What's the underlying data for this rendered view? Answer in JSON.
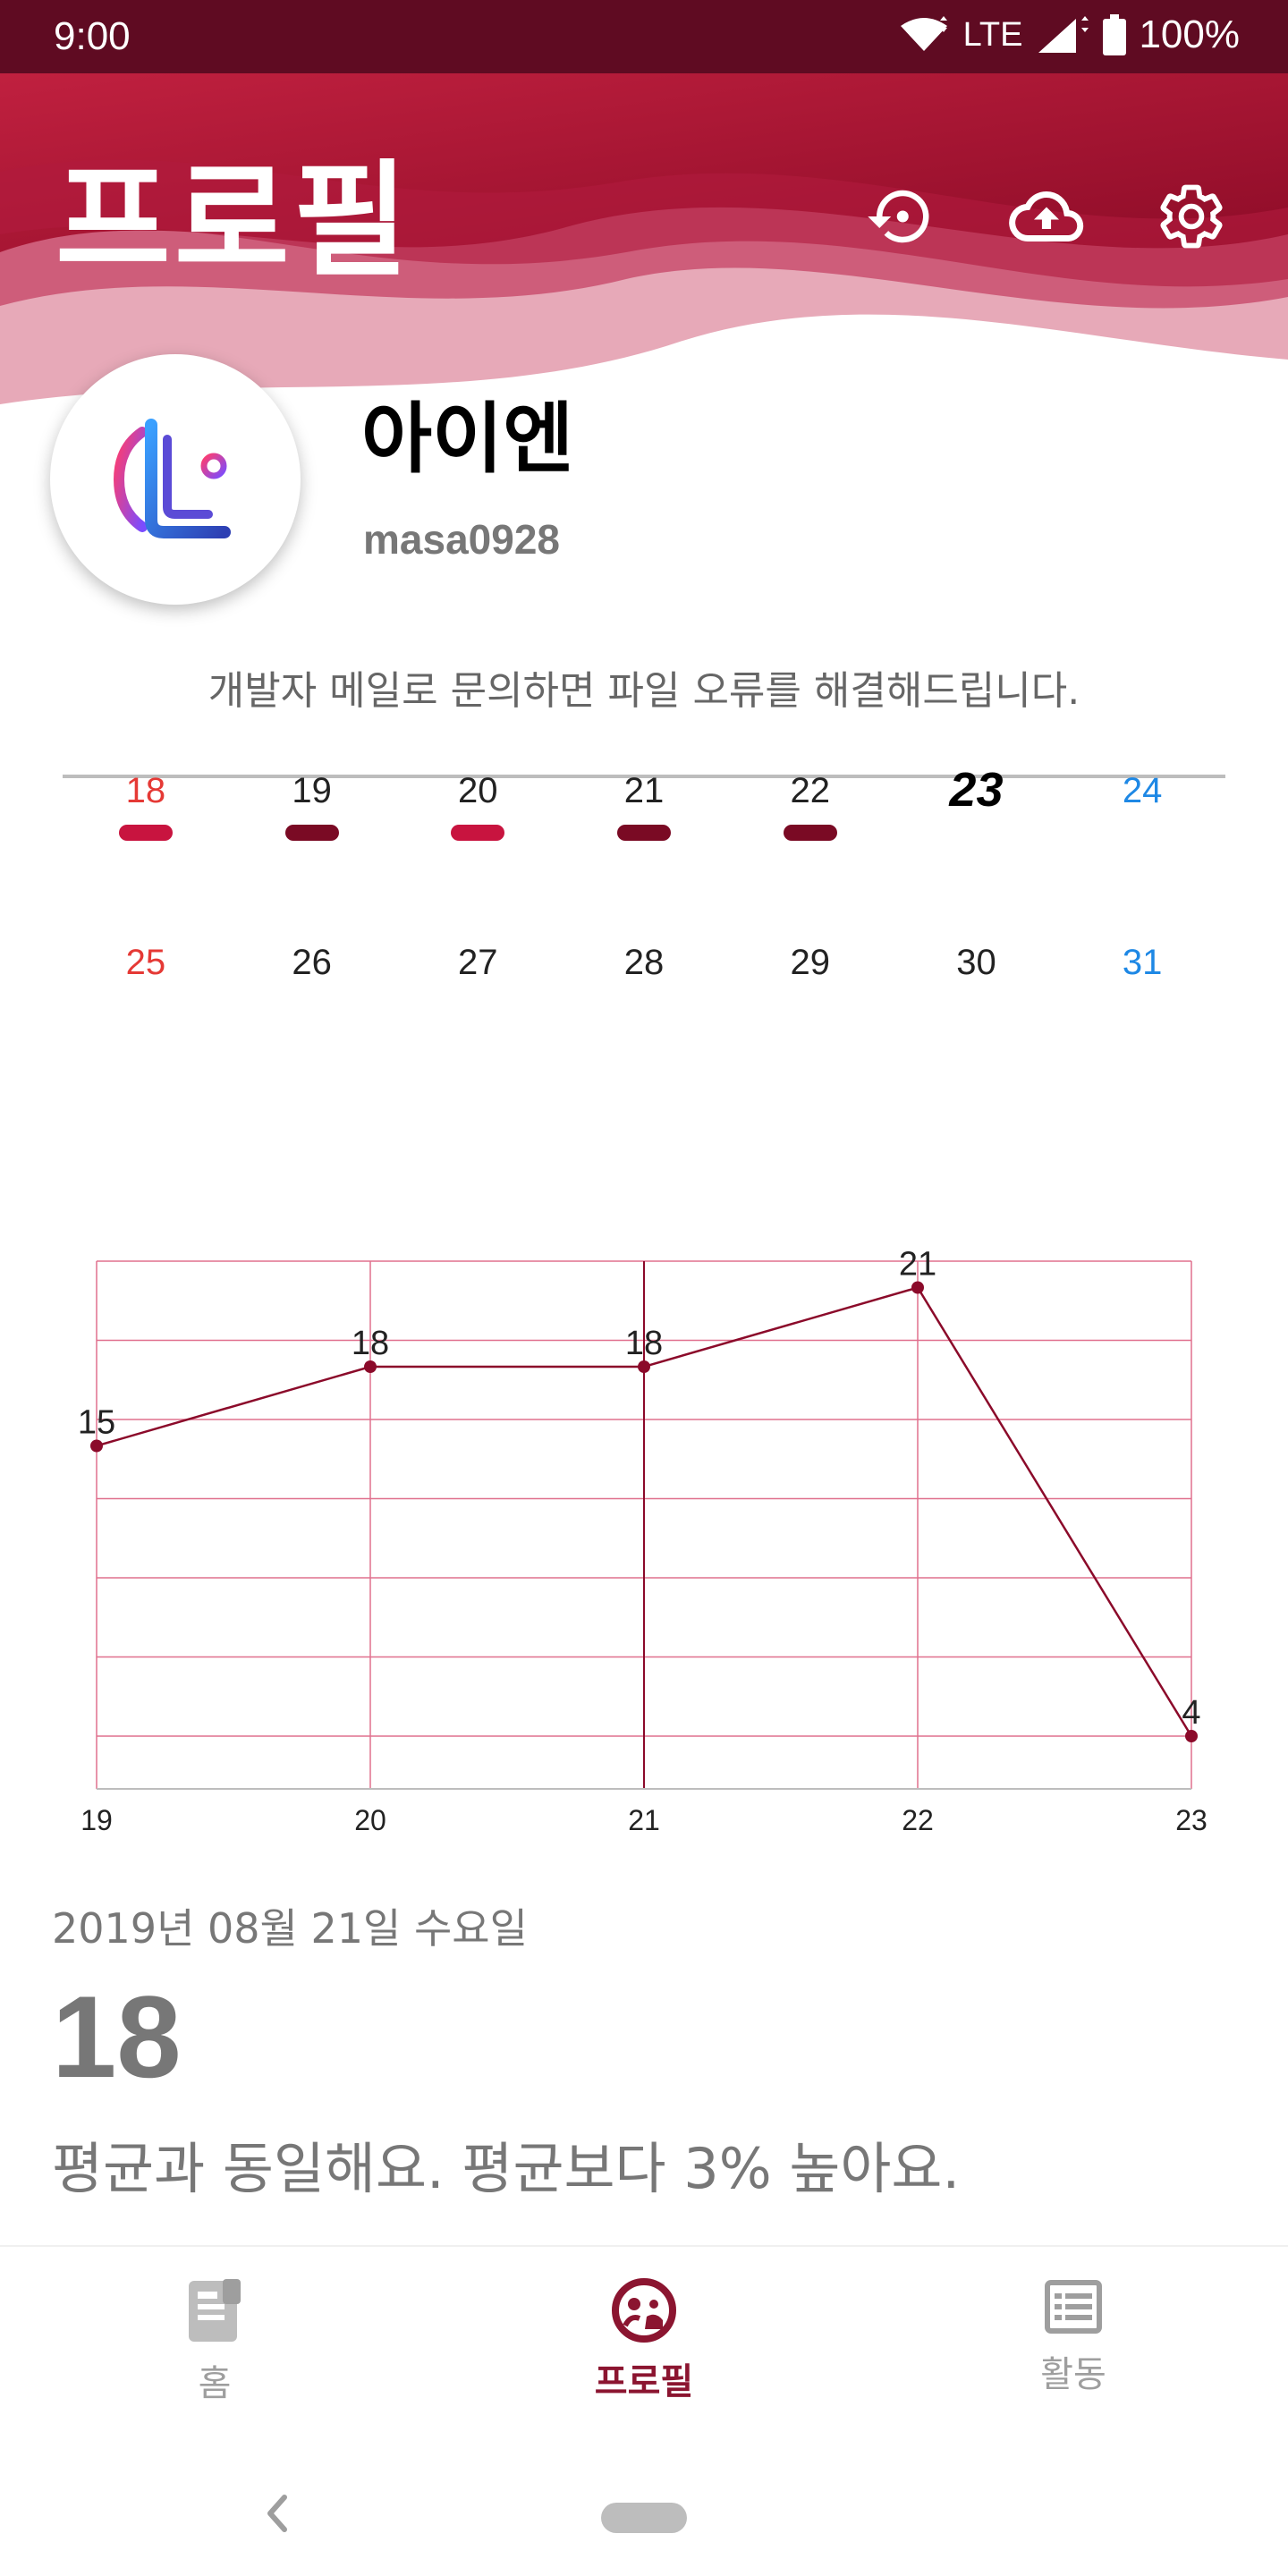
{
  "status_bar": {
    "time": "9:00",
    "network": "LTE",
    "battery": "100%"
  },
  "header": {
    "title": "프로필",
    "icons": [
      "history-icon",
      "cloud-upload-icon",
      "gear-icon"
    ],
    "gradient_colors": [
      "#a8102f",
      "#c0203f"
    ]
  },
  "profile": {
    "name": "아이엔",
    "user_id": "masa0928",
    "notice": "개발자 메일로 문의하면 파일 오류를 해결해드립니다."
  },
  "calendar": {
    "weeks": [
      {
        "days": [
          {
            "label": "18",
            "kind": "sun",
            "bar": "#c8143f"
          },
          {
            "label": "19",
            "kind": "normal",
            "bar": "#7a0a24"
          },
          {
            "label": "20",
            "kind": "normal",
            "bar": "#c8143f"
          },
          {
            "label": "21",
            "kind": "normal",
            "bar": "#7a0a24"
          },
          {
            "label": "22",
            "kind": "normal",
            "bar": "#7a0a24"
          },
          {
            "label": "23",
            "kind": "today",
            "bar": ""
          },
          {
            "label": "24",
            "kind": "sat",
            "bar": ""
          }
        ]
      },
      {
        "days": [
          {
            "label": "25",
            "kind": "sun",
            "bar": ""
          },
          {
            "label": "26",
            "kind": "normal",
            "bar": ""
          },
          {
            "label": "27",
            "kind": "normal",
            "bar": ""
          },
          {
            "label": "28",
            "kind": "normal",
            "bar": ""
          },
          {
            "label": "29",
            "kind": "normal",
            "bar": ""
          },
          {
            "label": "30",
            "kind": "normal",
            "bar": ""
          },
          {
            "label": "31",
            "kind": "sat",
            "bar": ""
          }
        ]
      }
    ]
  },
  "chart_data": {
    "type": "line",
    "categories": [
      "19",
      "20",
      "21",
      "22",
      "23"
    ],
    "values": [
      15,
      18,
      18,
      21,
      4
    ],
    "data_labels": [
      "15",
      "18",
      "18",
      "21",
      "4"
    ],
    "highlighted_category": "21",
    "ylim": [
      2,
      22
    ],
    "grid": true,
    "line_color": "#8b0a2a",
    "grid_color": "#e0708e"
  },
  "detail": {
    "date": "2019년 08월 21일 수요일",
    "value": "18",
    "comment": "평균과 동일해요. 평균보다 3% 높아요."
  },
  "bottom_nav": {
    "items": [
      {
        "label": "홈",
        "icon": "home-icon"
      },
      {
        "label": "프로필",
        "icon": "profile-icon",
        "active": true
      },
      {
        "label": "활동",
        "icon": "list-icon"
      }
    ],
    "active_color": "#8b1530"
  }
}
